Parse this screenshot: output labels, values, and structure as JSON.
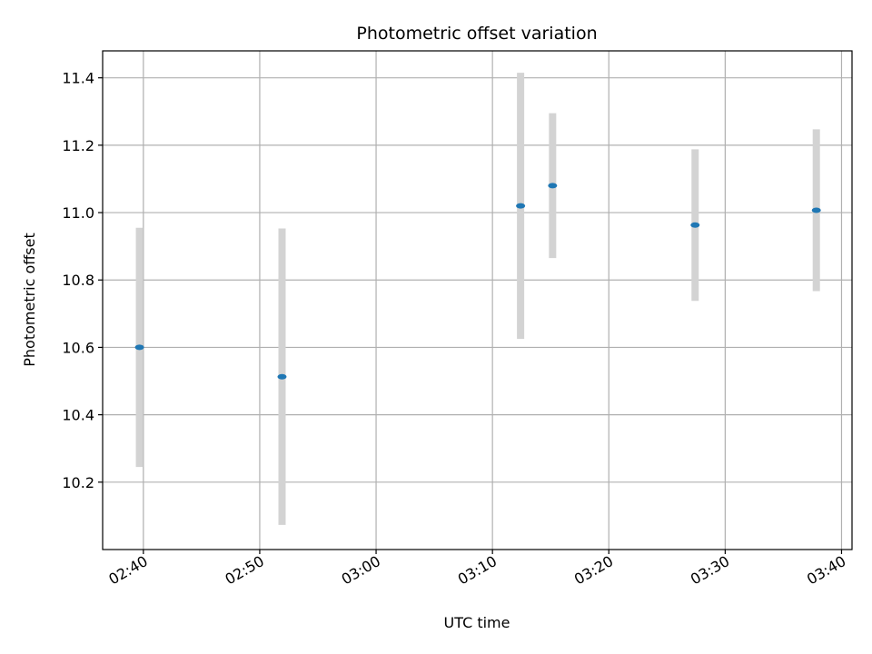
{
  "chart_data": {
    "type": "scatter",
    "title": "Photometric offset variation",
    "xlabel": "UTC time",
    "ylabel": "Photometric offset",
    "x_ticks": [
      "02:40",
      "02:50",
      "03:00",
      "03:10",
      "03:20",
      "03:30",
      "03:40"
    ],
    "x_tick_minutes": [
      160,
      170,
      180,
      190,
      200,
      210,
      220
    ],
    "xlim": [
      "02:36:30",
      "03:40:54"
    ],
    "y_ticks": [
      "10.2",
      "10.4",
      "10.6",
      "10.8",
      "11.0",
      "11.2",
      "11.4"
    ],
    "ylim": [
      10.0,
      11.48
    ],
    "grid": true,
    "points": [
      {
        "time": "02:39:40",
        "y": 10.6,
        "err": 0.355
      },
      {
        "time": "02:51:55",
        "y": 10.513,
        "err": 0.44
      },
      {
        "time": "03:12:25",
        "y": 11.02,
        "err": 0.395
      },
      {
        "time": "03:15:10",
        "y": 11.08,
        "err": 0.215
      },
      {
        "time": "03:27:25",
        "y": 10.963,
        "err": 0.225
      },
      {
        "time": "03:37:50",
        "y": 11.007,
        "err": 0.24
      }
    ],
    "colors": {
      "marker": "#1f77b4",
      "errorbar": "#d3d3d3",
      "grid": "#b0b0b0"
    }
  }
}
